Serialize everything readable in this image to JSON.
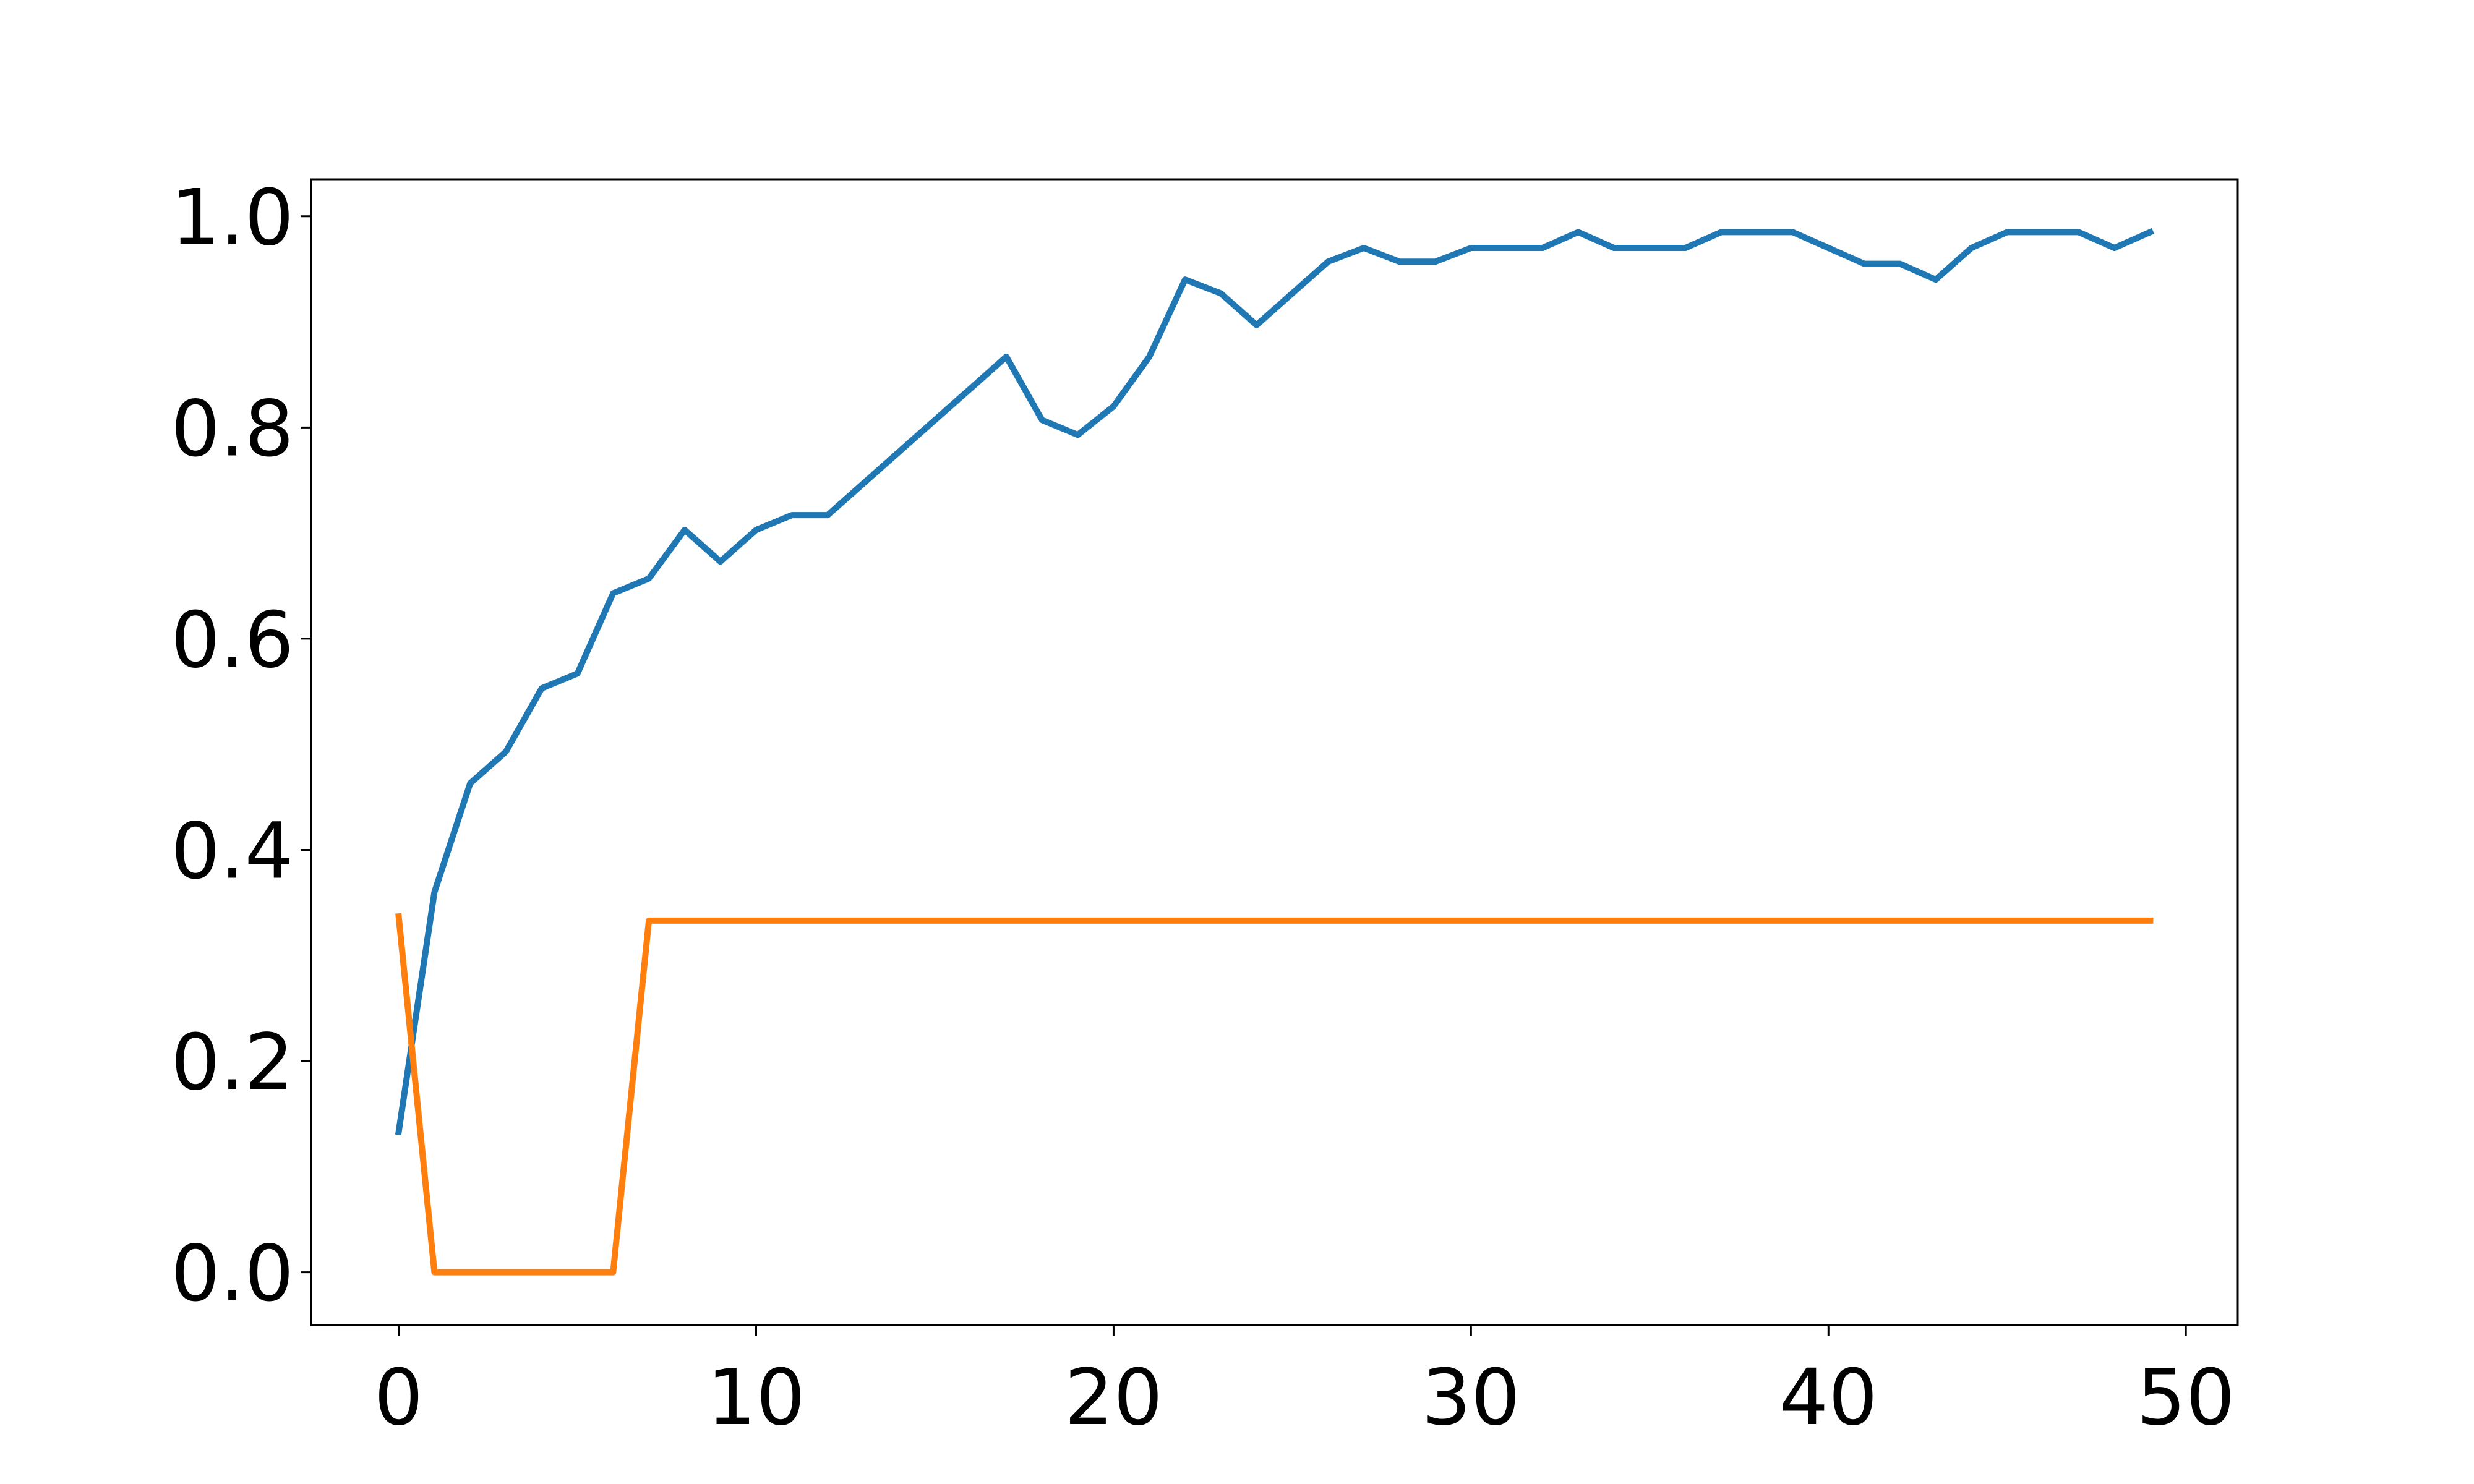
{
  "chart_data": {
    "type": "line",
    "title": "",
    "xlabel": "",
    "ylabel": "",
    "xlim": [
      -2.45,
      51.45
    ],
    "ylim": [
      -0.05,
      1.035
    ],
    "x_ticks": [
      0,
      10,
      20,
      30,
      40,
      50
    ],
    "y_ticks": [
      0.0,
      0.2,
      0.4,
      0.6,
      0.8,
      1.0
    ],
    "x_tick_labels": [
      "0",
      "10",
      "20",
      "30",
      "40",
      "50"
    ],
    "y_tick_labels": [
      "0.0",
      "0.2",
      "0.4",
      "0.6",
      "0.8",
      "1.0"
    ],
    "grid": false,
    "legend": "none",
    "series": [
      {
        "color": "#1f77b4",
        "x": [
          0,
          1,
          2,
          3,
          4,
          5,
          6,
          7,
          8,
          9,
          10,
          11,
          12,
          13,
          14,
          15,
          16,
          17,
          18,
          19,
          20,
          21,
          22,
          23,
          24,
          25,
          26,
          27,
          28,
          29,
          30,
          31,
          32,
          33,
          34,
          35,
          36,
          37,
          38,
          39,
          40,
          41,
          42,
          43,
          44,
          45,
          46,
          47,
          48,
          49
        ],
        "values": [
          0.133,
          0.36,
          0.463,
          0.493,
          0.553,
          0.567,
          0.643,
          0.657,
          0.703,
          0.673,
          0.703,
          0.717,
          0.717,
          0.747,
          0.777,
          0.807,
          0.837,
          0.867,
          0.807,
          0.793,
          0.82,
          0.867,
          0.94,
          0.927,
          0.897,
          0.927,
          0.957,
          0.97,
          0.957,
          0.957,
          0.97,
          0.97,
          0.97,
          0.985,
          0.97,
          0.97,
          0.97,
          0.985,
          0.985,
          0.985,
          0.97,
          0.955,
          0.955,
          0.94,
          0.97,
          0.985,
          0.985,
          0.985,
          0.97,
          0.985
        ]
      },
      {
        "color": "#ff7f0e",
        "x": [
          0,
          1,
          2,
          3,
          4,
          5,
          6,
          7,
          8,
          9,
          10,
          11,
          12,
          13,
          14,
          15,
          16,
          17,
          18,
          19,
          20,
          21,
          22,
          23,
          24,
          25,
          26,
          27,
          28,
          29,
          30,
          31,
          32,
          33,
          34,
          35,
          36,
          37,
          38,
          39,
          40,
          41,
          42,
          43,
          44,
          45,
          46,
          47,
          48,
          49
        ],
        "values": [
          0.337,
          0.0,
          0.0,
          0.0,
          0.0,
          0.0,
          0.0,
          0.333,
          0.333,
          0.333,
          0.333,
          0.333,
          0.333,
          0.333,
          0.333,
          0.333,
          0.333,
          0.333,
          0.333,
          0.333,
          0.333,
          0.333,
          0.333,
          0.333,
          0.333,
          0.333,
          0.333,
          0.333,
          0.333,
          0.333,
          0.333,
          0.333,
          0.333,
          0.333,
          0.333,
          0.333,
          0.333,
          0.333,
          0.333,
          0.333,
          0.333,
          0.333,
          0.333,
          0.333,
          0.333,
          0.333,
          0.333,
          0.333,
          0.333,
          0.333
        ]
      }
    ]
  }
}
